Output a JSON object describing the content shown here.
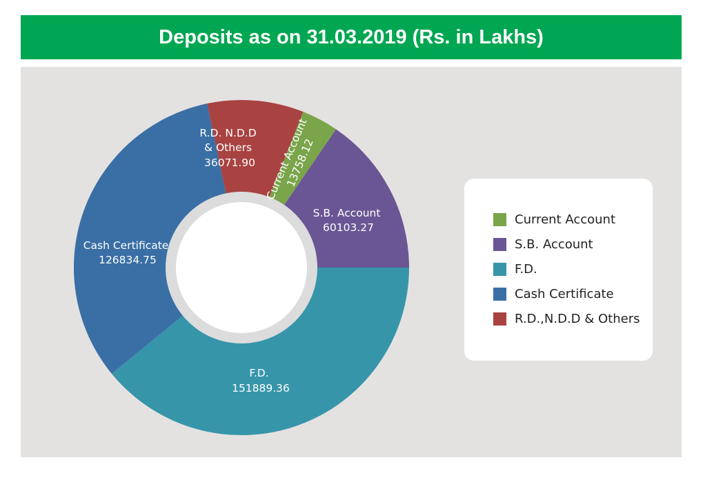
{
  "chart_data": {
    "type": "pie",
    "subtype": "donut",
    "title": "Deposits as on 31.03.2019 (Rs. in Lakhs)",
    "categories": [
      "Current Account",
      "S.B. Account",
      "F.D.",
      "Cash Certificate",
      "R.D.,N.D.D & Others"
    ],
    "values": [
      13758.12,
      60103.27,
      151889.36,
      126834.75,
      36071.9
    ],
    "value_labels": [
      "13758.12",
      "60103.27",
      "151889.36",
      "126834.75",
      "36071.90"
    ],
    "slice_labels": [
      [
        "Current Account"
      ],
      [
        "S.B. Account"
      ],
      [
        "F.D."
      ],
      [
        "Cash Certificate"
      ],
      [
        "R.D. N.D.D",
        "& Others"
      ]
    ],
    "colors": [
      "#7aa54b",
      "#6a5694",
      "#3795aa",
      "#3a6fa5",
      "#a84342"
    ],
    "legend_position": "right"
  }
}
